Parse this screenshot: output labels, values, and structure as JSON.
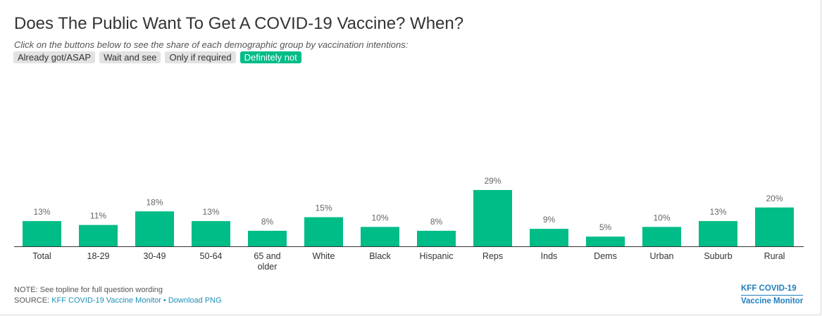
{
  "header": {
    "title": "Does The Public Want To Get A COVID-19 Vaccine? When?",
    "subtitle": "Click on the buttons below to see the share of each demographic group by vaccination intentions:"
  },
  "buttons": [
    {
      "label": "Already got/ASAP",
      "active": false
    },
    {
      "label": "Wait and see",
      "active": false
    },
    {
      "label": "Only if required",
      "active": false
    },
    {
      "label": "Definitely not",
      "active": true
    }
  ],
  "colors": {
    "accent": "#00bc87",
    "button_inactive": "#e2e2e2",
    "link": "#1f8fb8",
    "logo": "#1f7fc0"
  },
  "chart_data": {
    "type": "bar",
    "categories": [
      "Total",
      "18-29",
      "30-49",
      "50-64",
      "65 and older",
      "White",
      "Black",
      "Hispanic",
      "Reps",
      "Inds",
      "Dems",
      "Urban",
      "Suburb",
      "Rural"
    ],
    "category_lines": [
      [
        "Total"
      ],
      [
        "18-29"
      ],
      [
        "30-49"
      ],
      [
        "50-64"
      ],
      [
        "65 and",
        "older"
      ],
      [
        "White"
      ],
      [
        "Black"
      ],
      [
        "Hispanic"
      ],
      [
        "Reps"
      ],
      [
        "Inds"
      ],
      [
        "Dems"
      ],
      [
        "Urban"
      ],
      [
        "Suburb"
      ],
      [
        "Rural"
      ]
    ],
    "values": [
      13,
      11,
      18,
      13,
      8,
      15,
      10,
      8,
      29,
      9,
      5,
      10,
      13,
      20
    ],
    "value_labels": [
      "13%",
      "11%",
      "18%",
      "13%",
      "8%",
      "15%",
      "10%",
      "8%",
      "29%",
      "9%",
      "5%",
      "10%",
      "13%",
      "20%"
    ],
    "ylim": [
      0,
      29
    ],
    "grid": false,
    "legend": "none"
  },
  "footer": {
    "note": "NOTE: See topline for full question wording",
    "source_prefix": "SOURCE: ",
    "source_link": "KFF COVID-19 Vaccine Monitor",
    "separator": " • ",
    "download_link": "Download PNG"
  },
  "logo": {
    "line1": "KFF COVID-19",
    "line2": "Vaccine Monitor"
  }
}
